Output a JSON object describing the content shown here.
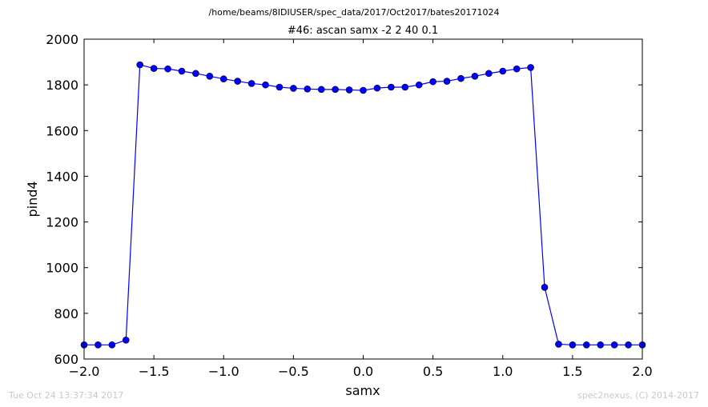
{
  "suptitle": "/home/beams/8IDIUSER/spec_data/2017/Oct2017/bates20171024",
  "footer_left": "Tue Oct 24 13:37:34 2017",
  "footer_right": "spec2nexus, (C) 2014-2017",
  "chart_data": {
    "type": "line",
    "title": "#46: ascan  samx -2 2  40 0.1",
    "xlabel": "samx",
    "ylabel": "pind4",
    "xlim": [
      -2.0,
      2.0
    ],
    "ylim": [
      600,
      2000
    ],
    "xticks": [
      "−2.0",
      "−1.5",
      "−1.0",
      "−0.5",
      "0.0",
      "0.5",
      "1.0",
      "1.5",
      "2.0"
    ],
    "yticks": [
      "600",
      "800",
      "1000",
      "1200",
      "1400",
      "1600",
      "1800",
      "2000"
    ],
    "grid": false,
    "marker": "circle",
    "color": "#0000ff",
    "series": [
      {
        "x": [
          -2.0,
          -1.9,
          -1.8,
          -1.7,
          -1.6,
          -1.5,
          -1.4,
          -1.3,
          -1.2,
          -1.1,
          -1.0,
          -0.9,
          -0.8,
          -0.7,
          -0.6,
          -0.5,
          -0.4,
          -0.3,
          -0.2,
          -0.1,
          0.0,
          0.1,
          0.2,
          0.3,
          0.4,
          0.5,
          0.6,
          0.7,
          0.8,
          0.9,
          1.0,
          1.1,
          1.2,
          1.3,
          1.4,
          1.5,
          1.6,
          1.7,
          1.8,
          1.9,
          2.0
        ],
        "y": [
          662,
          662,
          662,
          683,
          1888,
          1872,
          1870,
          1860,
          1850,
          1838,
          1826,
          1816,
          1806,
          1800,
          1790,
          1785,
          1782,
          1780,
          1780,
          1778,
          1776,
          1786,
          1790,
          1790,
          1800,
          1814,
          1816,
          1828,
          1838,
          1850,
          1860,
          1870,
          1876,
          914,
          665,
          662,
          662,
          662,
          662,
          662,
          662
        ]
      }
    ]
  }
}
